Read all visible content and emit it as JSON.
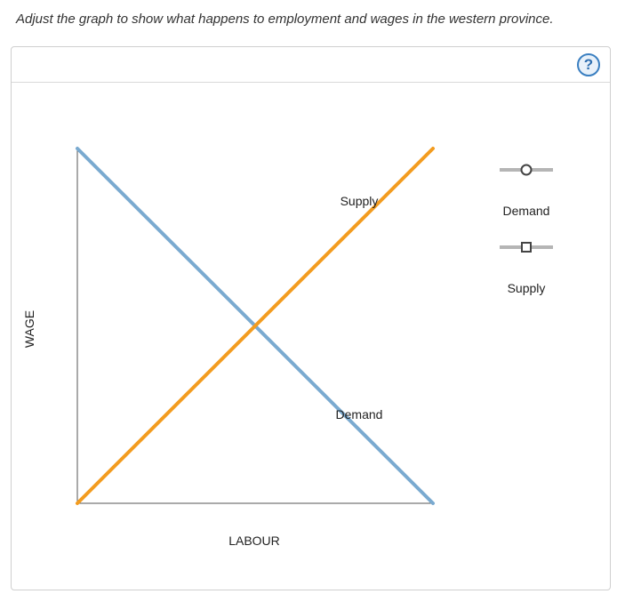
{
  "instruction": "Adjust the graph to show what happens to employment and wages in the western province.",
  "help": {
    "label": "?"
  },
  "colors": {
    "demand": "#7aaad0",
    "supply": "#f39c1f",
    "axis": "#555555",
    "legend_line": "#b5b5b5"
  },
  "icons": {
    "demand": "circle-marker-icon",
    "supply": "square-marker-icon",
    "help": "question-circle-icon"
  },
  "chart_data": {
    "type": "line",
    "xlabel": "LABOUR",
    "ylabel": "WAGE",
    "xlim": [
      0,
      100
    ],
    "ylim": [
      0,
      100
    ],
    "grid": false,
    "legend": {
      "placement": "right",
      "entries": [
        "Demand",
        "Supply"
      ]
    },
    "series": [
      {
        "name": "Demand",
        "points": [
          [
            0,
            100
          ],
          [
            100,
            0
          ]
        ],
        "label": "Demand"
      },
      {
        "name": "Supply",
        "points": [
          [
            0,
            0
          ],
          [
            100,
            100
          ]
        ],
        "label": "Supply"
      }
    ]
  }
}
